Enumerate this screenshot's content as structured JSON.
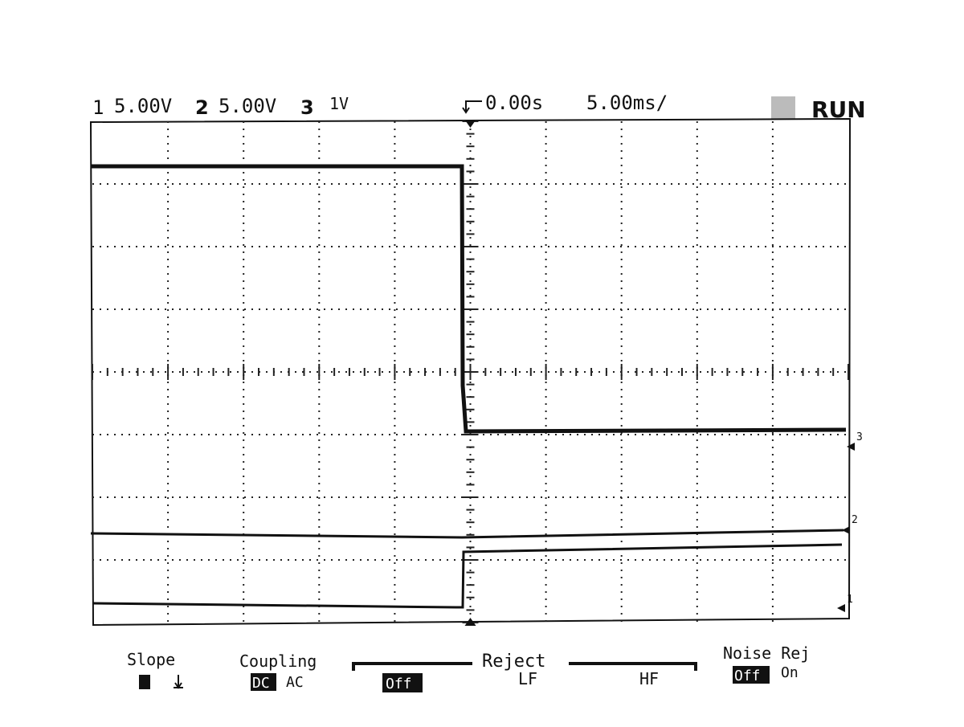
{
  "header": {
    "channels": [
      {
        "number": "1",
        "scale": "5.00V"
      },
      {
        "number": "2",
        "scale": "5.00V"
      },
      {
        "number": "3",
        "scale": "1V"
      }
    ],
    "time_delay": "0.00s",
    "time_base": "5.00ms/",
    "status": "RUN"
  },
  "markers": [
    "3",
    "2",
    "1"
  ],
  "softkeys": {
    "slope": {
      "label": "Slope"
    },
    "coupling": {
      "label": "Coupling",
      "options": [
        "DC",
        "AC"
      ]
    },
    "reject": {
      "label": "Reject",
      "options": [
        "Off",
        "LF",
        "HF"
      ]
    },
    "noise_rej": {
      "label": "Noise Rej",
      "options": [
        "Off",
        "On"
      ]
    }
  }
}
